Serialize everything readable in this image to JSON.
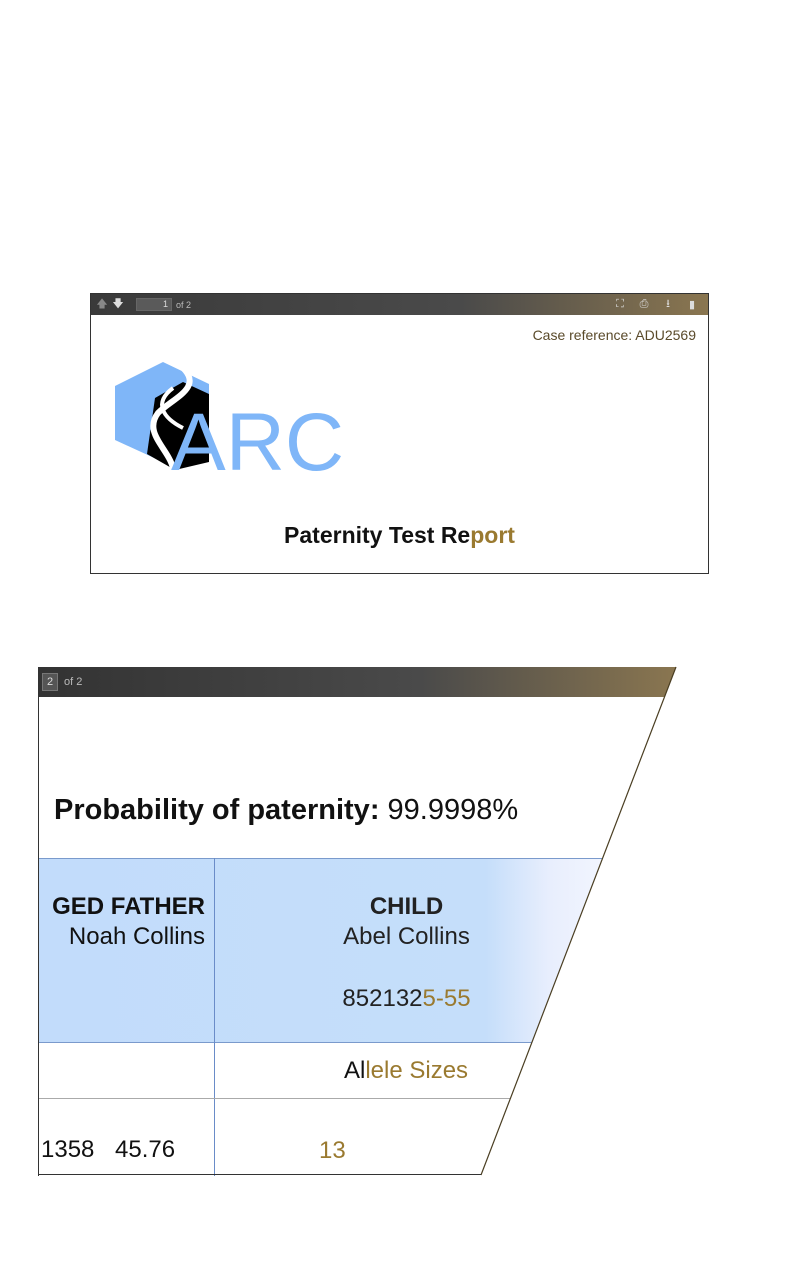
{
  "viewer1": {
    "page_current": "1",
    "page_total_label": "of 2",
    "icons": [
      "arrow-up-icon",
      "arrow-down-icon",
      "fullscreen-icon",
      "print-icon",
      "download-icon",
      "bookmark-icon"
    ]
  },
  "page1": {
    "case_reference": "Case reference: ADU2569",
    "logo_text": "ARC",
    "title_part1": "Paternity Test Re",
    "title_part2": "port"
  },
  "viewer2": {
    "page_current": "2",
    "page_total_label": "of 2"
  },
  "page2": {
    "probability_label": "Probability of paternity:",
    "probability_value": "99.9998%",
    "father_header": "GED FATHER",
    "father_name": "Noah Collins",
    "child_header": "CHILD",
    "child_name": "Abel Collins",
    "child_id_part1": "852132",
    "child_id_part2": "5-55",
    "allele_header_part1": "Al",
    "allele_header_part2": "lele Sizes",
    "row_father_values": "1358 45.76",
    "row_child_value": "13"
  },
  "colors": {
    "accent_gold": "#9a7a30",
    "logo_blue": "#7fb6f8",
    "table_header_bg": "#c2dcfb"
  }
}
